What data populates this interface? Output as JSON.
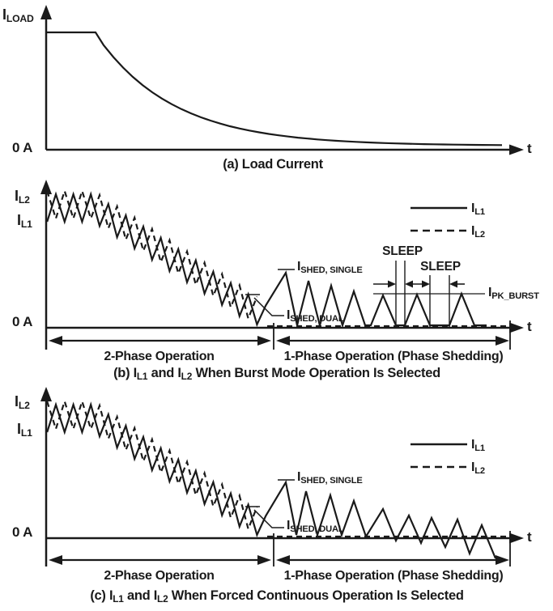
{
  "colors": {
    "ink": "#1a1a1a",
    "background": "#ffffff"
  },
  "panel_a": {
    "y_axis_label": {
      "main": "I",
      "sub": "LOAD"
    },
    "zero_label": "0 A",
    "time_label": "t",
    "caption": {
      "prefix": "(a)",
      "rest": "Load Current"
    }
  },
  "panel_b": {
    "y_label_top": {
      "main": "I",
      "sub": "L2"
    },
    "y_label_bottom": {
      "main": "I",
      "sub": "L1"
    },
    "zero_label": "0 A",
    "time_label": "t",
    "legend": {
      "solid": {
        "main": "I",
        "sub": "L1"
      },
      "dashed": {
        "main": "I",
        "sub": "L2"
      }
    },
    "annotations": {
      "shed_single": {
        "main": "I",
        "sub": "SHED, SINGLE"
      },
      "shed_dual": {
        "main": "I",
        "sub": "SHED, DUAL"
      },
      "sleep_first": "SLEEP",
      "sleep_second": "SLEEP",
      "pk_burst": {
        "main": "I",
        "sub": "PK_BURST"
      }
    },
    "region_left": "2-Phase Operation",
    "region_right": "1-Phase Operation (Phase Shedding)",
    "caption": {
      "prefix": "(b)",
      "i1": {
        "main": "I",
        "sub": "L1"
      },
      "conj": "and",
      "i2": {
        "main": "I",
        "sub": "L2"
      },
      "rest": "When Burst Mode Operation Is Selected"
    }
  },
  "panel_c": {
    "y_label_top": {
      "main": "I",
      "sub": "L2"
    },
    "y_label_bottom": {
      "main": "I",
      "sub": "L1"
    },
    "zero_label": "0 A",
    "time_label": "t",
    "legend": {
      "solid": {
        "main": "I",
        "sub": "L1"
      },
      "dashed": {
        "main": "I",
        "sub": "L2"
      }
    },
    "annotations": {
      "shed_single": {
        "main": "I",
        "sub": "SHED, SINGLE"
      },
      "shed_dual": {
        "main": "I",
        "sub": "SHED, DUAL"
      }
    },
    "region_left": "2-Phase Operation",
    "region_right": "1-Phase Operation (Phase Shedding)",
    "caption": {
      "prefix": "(c)",
      "i1": {
        "main": "I",
        "sub": "L1"
      },
      "conj": "and",
      "i2": {
        "main": "I",
        "sub": "L2"
      },
      "rest": "When Forced Continuous Operation Is Selected"
    }
  }
}
